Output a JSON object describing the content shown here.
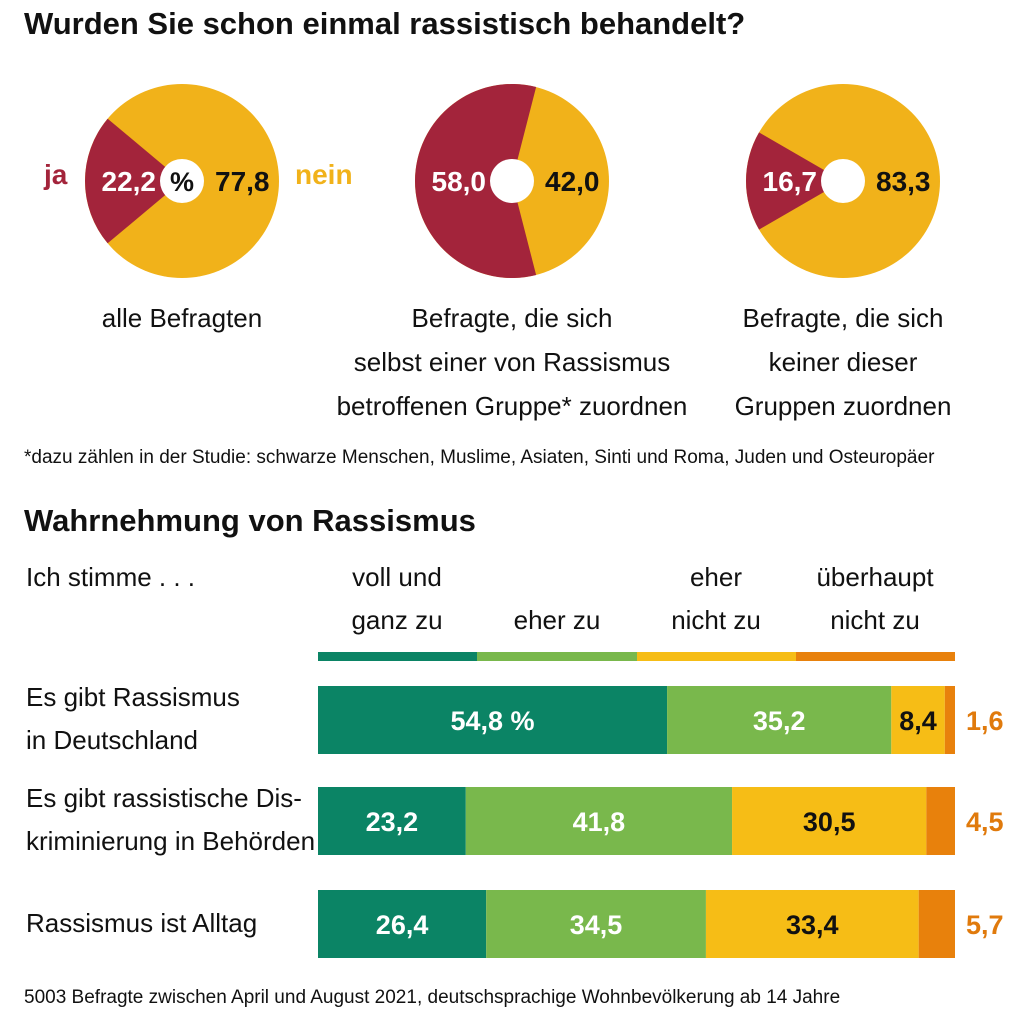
{
  "title": "Wurden Sie schon einmal rassistisch behandelt?",
  "colors": {
    "ja": "#a3243b",
    "nein": "#f1b21a",
    "voll": "#0b8465",
    "eher": "#79b84c",
    "eher_nicht": "#f6bd16",
    "gar_nicht": "#e8810c"
  },
  "pie_legend": {
    "ja": "ja",
    "nein": "nein",
    "unit": "%"
  },
  "pie_captions": [
    [
      "alle Befragten"
    ],
    [
      "Befragte, die sich",
      "selbst einer von Rassismus",
      "betroffenen Gruppe* zuordnen"
    ],
    [
      "Befragte, die sich",
      "keiner dieser",
      "Gruppen zuordnen"
    ]
  ],
  "footnote": "*dazu zählen in der Studie: schwarze Menschen, Muslime, Asiaten, Sinti und Roma, Juden und Osteuropäer",
  "section2_title": "Wahrnehmung von Rassismus",
  "stub_header": "Ich stimme . . .",
  "column_headers": [
    [
      "voll und",
      "ganz zu"
    ],
    [
      "",
      "eher zu"
    ],
    [
      "eher",
      "nicht zu"
    ],
    [
      "überhaupt",
      "nicht zu"
    ]
  ],
  "row_labels": [
    [
      "Es gibt Rassismus",
      "in Deutschland"
    ],
    [
      "Es gibt rassistische Dis-",
      "kriminierung in Behörden"
    ],
    [
      "Rassismus ist Alltag"
    ]
  ],
  "source": "5003 Befragte zwischen April und August 2021, deutschsprachige Wohnbevölkerung ab 14 Jahre",
  "chart_data": [
    {
      "type": "pie",
      "categories": [
        "ja",
        "nein"
      ],
      "charts": [
        {
          "values": [
            22.2,
            77.8
          ],
          "labels": [
            "22,2",
            "77,8"
          ]
        },
        {
          "values": [
            58.0,
            42.0
          ],
          "labels": [
            "58,0",
            "42,0"
          ]
        },
        {
          "values": [
            16.7,
            83.3
          ],
          "labels": [
            "16,7",
            "83,3"
          ]
        }
      ]
    },
    {
      "type": "bar",
      "orientation": "horizontal-stacked",
      "series": [
        {
          "name": "voll und ganz zu",
          "values": [
            54.8,
            23.2,
            26.4
          ],
          "labels": [
            "54,8 %",
            "23,2",
            "26,4"
          ]
        },
        {
          "name": "eher zu",
          "values": [
            35.2,
            41.8,
            34.5
          ],
          "labels": [
            "35,2",
            "41,8",
            "34,5"
          ]
        },
        {
          "name": "eher nicht zu",
          "values": [
            8.4,
            30.5,
            33.4
          ],
          "labels": [
            "8,4",
            "30,5",
            "33,4"
          ]
        },
        {
          "name": "überhaupt nicht zu",
          "values": [
            1.6,
            4.5,
            5.7
          ],
          "labels": [
            "1,6",
            "4,5",
            "5,7"
          ]
        }
      ]
    }
  ]
}
